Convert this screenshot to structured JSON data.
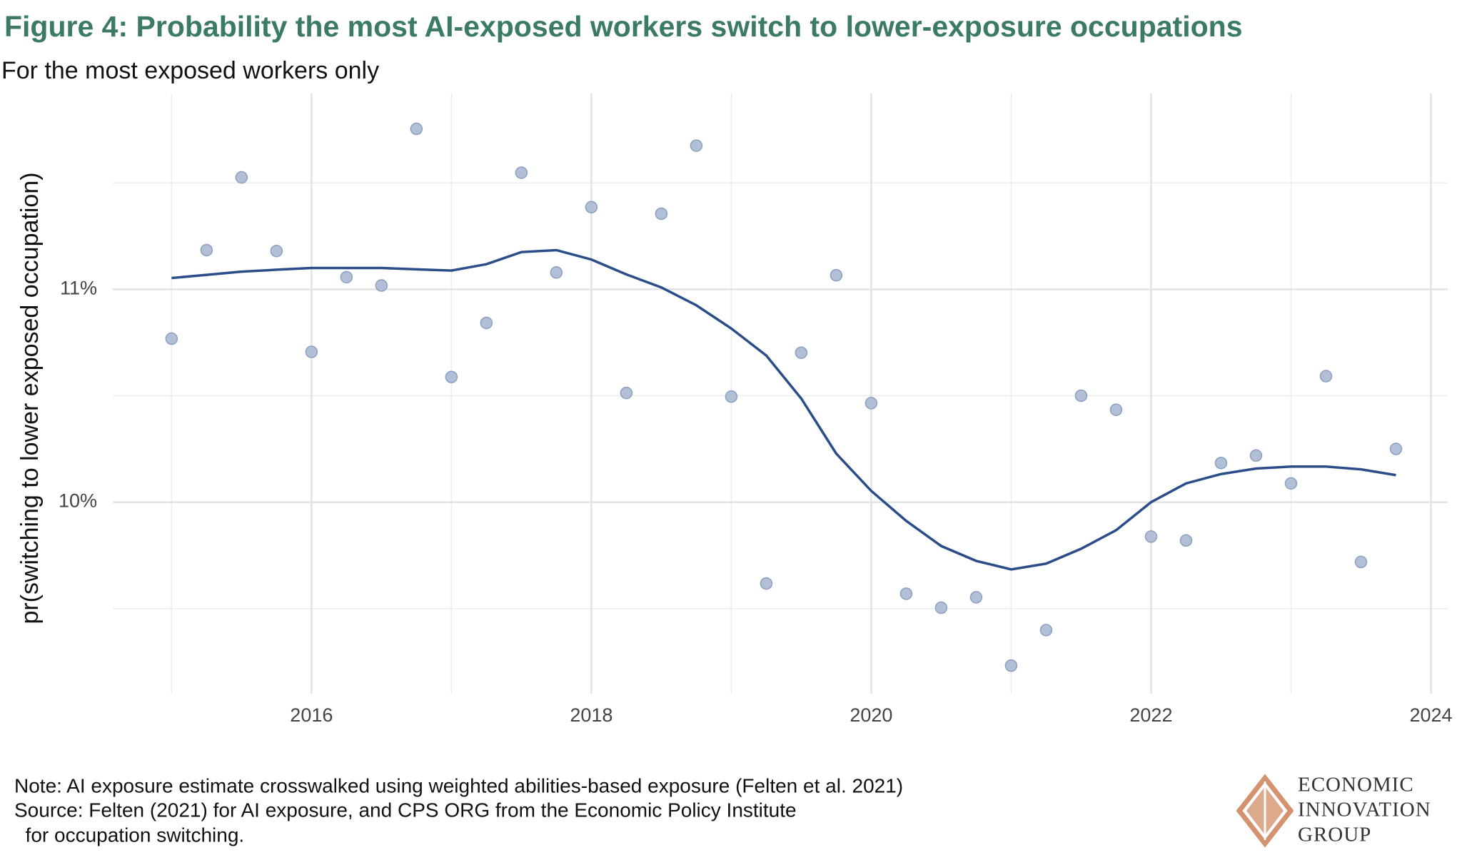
{
  "chart_data": {
    "type": "scatter",
    "title": "Figure 4: Probability the most AI-exposed workers switch to lower-exposure occupations",
    "subtitle": "For the most exposed workers only",
    "y_label": "pr(switching to lower exposed occupation)",
    "x": [
      2015,
      2015.25,
      2015.5,
      2015.75,
      2016,
      2016.25,
      2016.5,
      2016.75,
      2017,
      2017.25,
      2017.5,
      2017.75,
      2018,
      2018.25,
      2018.5,
      2018.75,
      2019,
      2019.25,
      2019.5,
      2019.75,
      2020,
      2020.25,
      2020.5,
      2020.75,
      2021,
      2021.25,
      2021.5,
      2021.75,
      2022,
      2022.25,
      2022.5,
      2022.75,
      2023,
      2023.25,
      2023.5,
      2023.75
    ],
    "points": {
      "color": "#a9b8d3",
      "values": [
        10.768,
        11.184,
        11.526,
        11.18,
        10.706,
        11.057,
        11.018,
        11.754,
        10.588,
        10.842,
        11.548,
        11.079,
        11.386,
        10.513,
        11.355,
        11.675,
        10.496,
        9.618,
        10.702,
        11.066,
        10.465,
        9.57,
        9.504,
        9.553,
        9.232,
        9.399,
        10.5,
        10.434,
        9.838,
        9.82,
        10.184,
        10.219,
        10.088,
        10.592,
        9.719,
        10.25
      ]
    },
    "trend": {
      "color": "#2a4d8a",
      "values": [
        11.053,
        11.068,
        11.083,
        11.092,
        11.1,
        11.1,
        11.1,
        11.094,
        11.088,
        11.118,
        11.175,
        11.184,
        11.14,
        11.07,
        11.009,
        10.925,
        10.816,
        10.689,
        10.487,
        10.228,
        10.053,
        9.912,
        9.794,
        9.724,
        9.684,
        9.711,
        9.781,
        9.868,
        10.0,
        10.088,
        10.132,
        10.158,
        10.167,
        10.167,
        10.154,
        10.127
      ]
    },
    "xlim": [
      2014.58,
      2024.12
    ],
    "ylim": [
      9.1,
      11.92
    ],
    "xticks": [
      2016,
      2018,
      2020,
      2022,
      2024
    ],
    "yticks": [
      {
        "value": 10,
        "label": "10%"
      },
      {
        "value": 11,
        "label": "11%"
      }
    ],
    "x_minor_grid": [
      2015,
      2017,
      2019,
      2021,
      2023
    ],
    "y_minor_grid": [
      9.5,
      10.5,
      11.5
    ],
    "grid": true
  },
  "footer": {
    "notes": [
      "Note: AI exposure estimate crosswalked using weighted abilities-based exposure (Felten et al. 2021)",
      "Source: Felten (2021) for AI exposure, and CPS ORG from the Economic Policy Institute",
      "  for occupation switching."
    ],
    "logo": [
      "ECONOMIC",
      "INNOVATION",
      "GROUP"
    ]
  }
}
